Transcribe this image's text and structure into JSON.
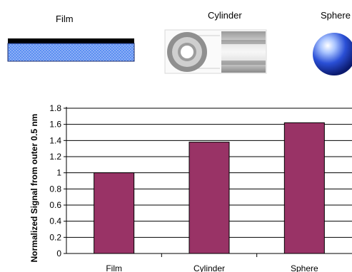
{
  "illustrations": {
    "labels": [
      "Film",
      "Cylinder",
      "Sphere"
    ]
  },
  "colors": {
    "bar": "#993366",
    "film_top": "#000000",
    "film_body": "#5b8ef0"
  },
  "chart_data": {
    "type": "bar",
    "categories": [
      "Film",
      "Cylinder",
      "Sphere"
    ],
    "values": [
      1.0,
      1.38,
      1.62
    ],
    "ylabel": "Normalized Signal from outer 0.5 nm",
    "xlabel": "",
    "ylim": [
      0,
      1.8
    ],
    "yticks": [
      "0",
      "0.2",
      "0.4",
      "0.6",
      "0.8",
      "1",
      "1.2",
      "1.4",
      "1.6",
      "1.8"
    ],
    "grid": true
  }
}
